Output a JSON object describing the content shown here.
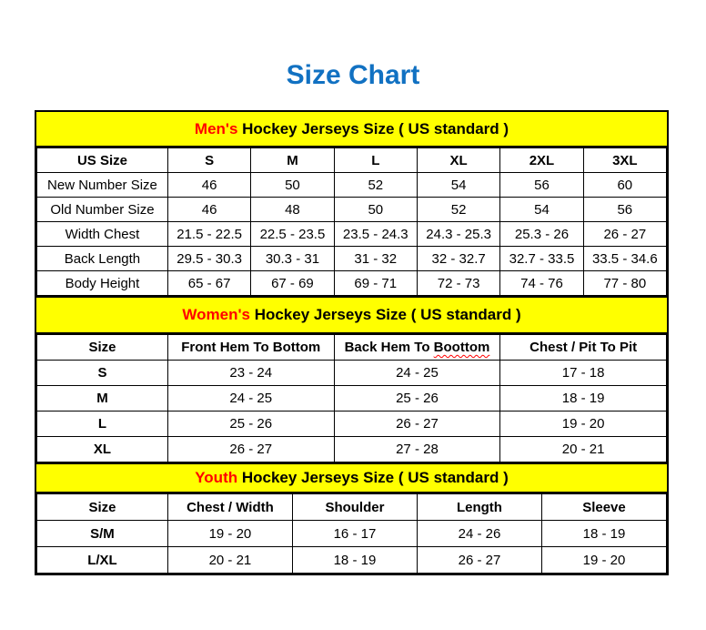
{
  "page": {
    "title": "Size Chart",
    "title_color": "#1171c2",
    "accent_color": "#ff0000",
    "band_color": "#ffff00"
  },
  "chart_data": [
    {
      "type": "table",
      "id": "mens",
      "title_accent": "Men's",
      "title_rest": " Hockey Jerseys Size ( US standard )",
      "columns": [
        "US Size",
        "S",
        "M",
        "L",
        "XL",
        "2XL",
        "3XL"
      ],
      "rows": [
        {
          "label": "New Number Size",
          "values": [
            "46",
            "50",
            "52",
            "54",
            "56",
            "60"
          ]
        },
        {
          "label": "Old Number Size",
          "values": [
            "46",
            "48",
            "50",
            "52",
            "54",
            "56"
          ]
        },
        {
          "label": "Width Chest",
          "values": [
            "21.5 - 22.5",
            "22.5 - 23.5",
            "23.5 - 24.3",
            "24.3 - 25.3",
            "25.3 - 26",
            "26 - 27"
          ]
        },
        {
          "label": "Back Length",
          "values": [
            "29.5 - 30.3",
            "30.3 - 31",
            "31 - 32",
            "32 - 32.7",
            "32.7 - 33.5",
            "33.5 - 34.6"
          ]
        },
        {
          "label": "Body Height",
          "values": [
            "65 - 67",
            "67 - 69",
            "69 - 71",
            "72 - 73",
            "74 - 76",
            "77 - 80"
          ]
        }
      ]
    },
    {
      "type": "table",
      "id": "womens",
      "title_accent": "Women's",
      "title_rest": " Hockey Jerseys Size ( US standard )",
      "columns": [
        "Size",
        "Front Hem To Bottom",
        {
          "text": "Back Hem To ",
          "spellcheck_word": "Boottom"
        },
        "Chest / Pit To Pit"
      ],
      "rows": [
        {
          "label": "S",
          "values": [
            "23 - 24",
            "24 - 25",
            "17 - 18"
          ]
        },
        {
          "label": "M",
          "values": [
            "24 - 25",
            "25 - 26",
            "18 - 19"
          ]
        },
        {
          "label": "L",
          "values": [
            "25 - 26",
            "26 - 27",
            "19 - 20"
          ]
        },
        {
          "label": "XL",
          "values": [
            "26 - 27",
            "27 - 28",
            "20 - 21"
          ]
        }
      ]
    },
    {
      "type": "table",
      "id": "youth",
      "title_accent": "Youth",
      "title_rest": " Hockey Jerseys Size ( US standard )",
      "columns": [
        "Size",
        "Chest / Width",
        "Shoulder",
        "Length",
        "Sleeve"
      ],
      "rows": [
        {
          "label": "S/M",
          "values": [
            "19 - 20",
            "16 - 17",
            "24 - 26",
            "18 - 19"
          ]
        },
        {
          "label": "L/XL",
          "values": [
            "20 - 21",
            "18 - 19",
            "26 - 27",
            "19 - 20"
          ]
        }
      ]
    }
  ]
}
